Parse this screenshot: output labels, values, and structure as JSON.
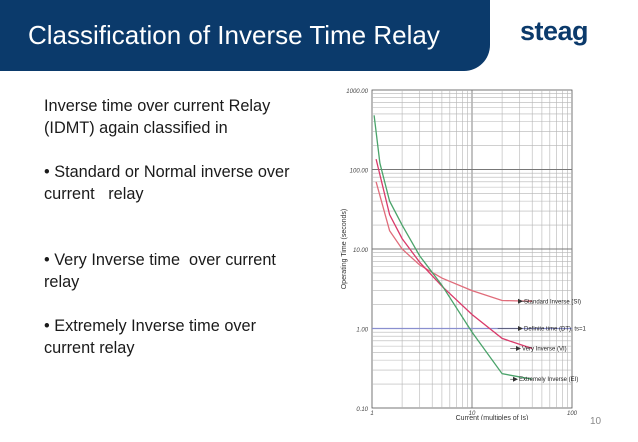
{
  "slide": {
    "title": "Classification of Inverse Time Relay",
    "logo_text": "steag",
    "page_number": "10",
    "intro_line1": "Inverse time over current Relay",
    "intro_line2": "(IDMT) again classified in",
    "bullets": [
      "• Standard or Normal inverse over",
      "current   relay",
      "• Very Inverse time  over current",
      "relay",
      "• Extremely Inverse time over",
      "current relay"
    ],
    "colors": {
      "title_bg": "#0b3a6b",
      "logo": "#0b3a6b"
    }
  },
  "chart_data": {
    "type": "line",
    "xlabel": "Current (multiples of Is)",
    "ylabel": "Operating Time (seconds)",
    "x_scale": "log",
    "y_scale": "log",
    "xlim": [
      1,
      100
    ],
    "ylim": [
      0.1,
      1000
    ],
    "y_tick_labels": [
      "1000.00",
      "100.00",
      "10.00",
      "1.00",
      "0.10"
    ],
    "x_tick_labels": [
      "1",
      "10",
      "100"
    ],
    "grid": true,
    "series": [
      {
        "name": "Standard Inverse (SI)",
        "color": "#e06c7a",
        "x": [
          1.1,
          1.5,
          2,
          3,
          5,
          10,
          20,
          40
        ],
        "y": [
          70,
          17,
          10,
          6.3,
          4.3,
          3.0,
          2.25,
          2.2
        ]
      },
      {
        "name": "Definite time (DT), ts=1",
        "color": "#8a8fcf",
        "x": [
          1,
          100
        ],
        "y": [
          1,
          1
        ]
      },
      {
        "name": "Very Inverse (VI)",
        "color": "#d93a6a",
        "x": [
          1.1,
          1.5,
          2,
          3,
          5,
          10,
          20,
          40
        ],
        "y": [
          135,
          27,
          13.5,
          6.8,
          3.4,
          1.5,
          0.75,
          0.56
        ]
      },
      {
        "name": "Extremely Inverse (EI)",
        "color": "#4aa36a",
        "x": [
          1.05,
          1.2,
          1.5,
          2,
          3,
          5,
          10,
          20,
          40
        ],
        "y": [
          480,
          120,
          40,
          20,
          8.2,
          3.5,
          0.9,
          0.27,
          0.23
        ]
      }
    ]
  }
}
